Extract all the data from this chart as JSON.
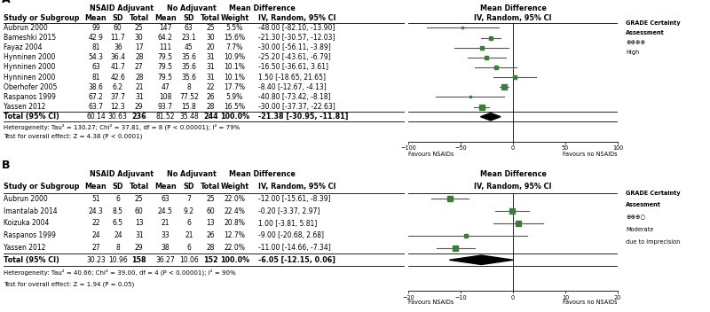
{
  "panel_A": {
    "title": "A",
    "header1": "NSAID Adjuvant",
    "header2": "No Adjuvant",
    "header3": "Mean Difference",
    "studies": [
      {
        "name": "Aubrun 2000",
        "m1": "99",
        "sd1": "60",
        "n1": "25",
        "m2": "147",
        "sd2": "63",
        "n2": "25",
        "weight": "5.5%",
        "md": -48.0,
        "lo": -82.1,
        "hi": -13.9,
        "ci_str": "-48.00 [-82.10, -13.90]"
      },
      {
        "name": "Bameshki 2015",
        "m1": "42.9",
        "sd1": "11.7",
        "n1": "30",
        "m2": "64.2",
        "sd2": "23.1",
        "n2": "30",
        "weight": "15.6%",
        "md": -21.3,
        "lo": -30.57,
        "hi": -12.03,
        "ci_str": "-21.30 [-30.57, -12.03]"
      },
      {
        "name": "Fayaz 2004",
        "m1": "81",
        "sd1": "36",
        "n1": "17",
        "m2": "111",
        "sd2": "45",
        "n2": "20",
        "weight": "7.7%",
        "md": -30.0,
        "lo": -56.11,
        "hi": -3.89,
        "ci_str": "-30.00 [-56.11, -3.89]"
      },
      {
        "name": "Hynninen 2000",
        "m1": "54.3",
        "sd1": "36.4",
        "n1": "28",
        "m2": "79.5",
        "sd2": "35.6",
        "n2": "31",
        "weight": "10.9%",
        "md": -25.2,
        "lo": -43.61,
        "hi": -6.79,
        "ci_str": "-25.20 [-43.61, -6.79]"
      },
      {
        "name": "Hynninen 2000",
        "m1": "63",
        "sd1": "41.7",
        "n1": "27",
        "m2": "79.5",
        "sd2": "35.6",
        "n2": "31",
        "weight": "10.1%",
        "md": -16.5,
        "lo": -36.61,
        "hi": 3.61,
        "ci_str": "-16.50 [-36.61, 3.61]"
      },
      {
        "name": "Hynninen 2000",
        "m1": "81",
        "sd1": "42.6",
        "n1": "28",
        "m2": "79.5",
        "sd2": "35.6",
        "n2": "31",
        "weight": "10.1%",
        "md": 1.5,
        "lo": -18.65,
        "hi": 21.65,
        "ci_str": "1.50 [-18.65, 21.65]"
      },
      {
        "name": "Oberhofer 2005",
        "m1": "38.6",
        "sd1": "6.2",
        "n1": "21",
        "m2": "47",
        "sd2": "8",
        "n2": "22",
        "weight": "17.7%",
        "md": -8.4,
        "lo": -12.67,
        "hi": -4.13,
        "ci_str": "-8.40 [-12.67, -4.13]"
      },
      {
        "name": "Raspanos 1999",
        "m1": "67.2",
        "sd1": "37.7",
        "n1": "31",
        "m2": "108",
        "sd2": "77.52",
        "n2": "26",
        "weight": "5.9%",
        "md": -40.8,
        "lo": -73.42,
        "hi": -8.18,
        "ci_str": "-40.80 [-73.42, -8.18]"
      },
      {
        "name": "Yassen 2012",
        "m1": "63.7",
        "sd1": "12.3",
        "n1": "29",
        "m2": "93.7",
        "sd2": "15.8",
        "n2": "28",
        "weight": "16.5%",
        "md": -30.0,
        "lo": -37.37,
        "hi": -22.63,
        "ci_str": "-30.00 [-37.37, -22.63]"
      }
    ],
    "total": {
      "m1": "60.14",
      "sd1": "30.63",
      "n1": "236",
      "m2": "81.52",
      "sd2": "35.48",
      "n2": "244",
      "weight": "100.0%",
      "md": -21.38,
      "lo": -30.95,
      "hi": -11.81,
      "ci_str": "-21.38 [-30.95, -11.81]"
    },
    "heterogeneity": "Heterogeneity: Tau² = 130.27; Chi² = 37.81, df = 8 (P < 0.00001); I² = 79%",
    "test_overall": "Test for overall effect: Z = 4.38 (P < 0.0001)",
    "xlim": [
      -100,
      100
    ],
    "xticks": [
      -100,
      -50,
      0,
      50,
      100
    ],
    "xlabel_left": "Favours NSAIDs",
    "xlabel_right": "Favours no NSAIDs",
    "grade_text": [
      "GRADE Certainty",
      "Assessment",
      "⊕⊕⊕⊕",
      "High"
    ]
  },
  "panel_B": {
    "title": "B",
    "header1": "NSAID Adjuvant",
    "header2": "No Adjuvant",
    "header3": "Mean Difference",
    "studies": [
      {
        "name": "Aubrun 2000",
        "m1": "51",
        "sd1": "6",
        "n1": "25",
        "m2": "63",
        "sd2": "7",
        "n2": "25",
        "weight": "22.0%",
        "md": -12.0,
        "lo": -15.61,
        "hi": -8.39,
        "ci_str": "-12.00 [-15.61, -8.39]"
      },
      {
        "name": "Imantalab 2014",
        "m1": "24.3",
        "sd1": "8.5",
        "n1": "60",
        "m2": "24.5",
        "sd2": "9.2",
        "n2": "60",
        "weight": "22.4%",
        "md": -0.2,
        "lo": -3.37,
        "hi": 2.97,
        "ci_str": "-0.20 [-3.37, 2.97]"
      },
      {
        "name": "Koizuka 2004",
        "m1": "22",
        "sd1": "6.5",
        "n1": "13",
        "m2": "21",
        "sd2": "6",
        "n2": "13",
        "weight": "20.8%",
        "md": 1.0,
        "lo": -3.81,
        "hi": 5.81,
        "ci_str": "1.00 [-3.81, 5.81]"
      },
      {
        "name": "Raspanos 1999",
        "m1": "24",
        "sd1": "24",
        "n1": "31",
        "m2": "33",
        "sd2": "21",
        "n2": "26",
        "weight": "12.7%",
        "md": -9.0,
        "lo": -20.68,
        "hi": 2.68,
        "ci_str": "-9.00 [-20.68, 2.68]"
      },
      {
        "name": "Yassen 2012",
        "m1": "27",
        "sd1": "8",
        "n1": "29",
        "m2": "38",
        "sd2": "6",
        "n2": "28",
        "weight": "22.0%",
        "md": -11.0,
        "lo": -14.66,
        "hi": -7.34,
        "ci_str": "-11.00 [-14.66, -7.34]"
      }
    ],
    "total": {
      "m1": "30.23",
      "sd1": "10.96",
      "n1": "158",
      "m2": "36.27",
      "sd2": "10.06",
      "n2": "152",
      "weight": "100.0%",
      "md": -6.05,
      "lo": -12.15,
      "hi": 0.06,
      "ci_str": "-6.05 [-12.15, 0.06]"
    },
    "heterogeneity": "Heterogeneity: Tau² = 40.66; Chi² = 39.00, df = 4 (P < 0.00001); I² = 90%",
    "test_overall": "Test for overall effect: Z = 1.94 (P = 0.05)",
    "xlim": [
      -20,
      20
    ],
    "xticks": [
      -20,
      -10,
      0,
      10,
      20
    ],
    "xlabel_left": "Favours NSAIDs",
    "xlabel_right": "Favours no NSAIDs",
    "grade_text": [
      "GRADE Certainty",
      "Assesment",
      "⊕⊕⊕○",
      "Moderate",
      "due to imprecision"
    ]
  },
  "marker_color": "#3a7d3a",
  "diamond_color": "#000000",
  "line_color": "#555555",
  "bg_color": "#ffffff"
}
